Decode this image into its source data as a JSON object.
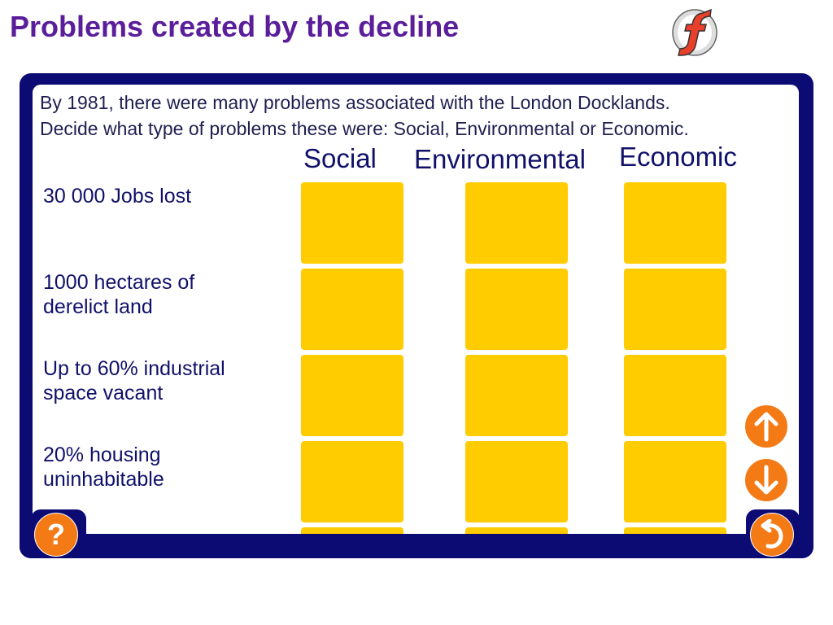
{
  "page": {
    "title": "Problems created by the decline"
  },
  "logo": {
    "icon": "flash-logo-icon",
    "letter": "f"
  },
  "activity": {
    "instructions_line1": "By 1981, there were many problems associated with the London Docklands.",
    "instructions_line2": "Decide what type of problems these were: Social, Environmental or Economic.",
    "columns": [
      "Social",
      "Environmental",
      "Economic"
    ],
    "rows": [
      {
        "line1": "30 000 Jobs lost",
        "line2": ""
      },
      {
        "line1": "1000 hectares of",
        "line2": "derelict land"
      },
      {
        "line1": "Up to 60% industrial",
        "line2": "space vacant"
      },
      {
        "line1": "20% housing",
        "line2": "uninhabitable"
      }
    ]
  },
  "controls": {
    "help_icon": "question-mark-icon",
    "help_glyph": "?",
    "scroll_up_icon": "arrow-up-icon",
    "scroll_down_icon": "arrow-down-icon",
    "reset_icon": "undo-icon"
  },
  "colors": {
    "title": "#5a1e9b",
    "frame": "#0b0b73",
    "cell": "#ffcc00",
    "button": "#f47a16",
    "text": "#10106a"
  }
}
